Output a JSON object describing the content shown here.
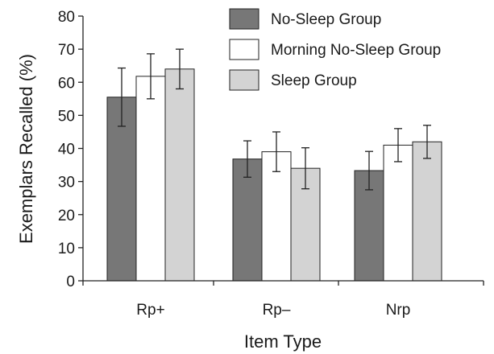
{
  "chart_data": {
    "type": "bar",
    "xlabel": "Item Type",
    "ylabel": "Exemplars Recalled (%)",
    "ylim": [
      0,
      80
    ],
    "yticks": [
      0,
      10,
      20,
      30,
      40,
      50,
      60,
      70,
      80
    ],
    "categories": [
      "Rp+",
      "Rp–",
      "Nrp"
    ],
    "series": [
      {
        "name": "No-Sleep Group",
        "color": "#777777",
        "values": [
          55.5,
          36.8,
          33.3
        ],
        "error": [
          8.8,
          5.5,
          5.8
        ]
      },
      {
        "name": "Morning No-Sleep Group",
        "color": "#ffffff",
        "values": [
          61.8,
          39.0,
          41.0
        ],
        "error": [
          6.8,
          6.0,
          5.0
        ]
      },
      {
        "name": "Sleep Group",
        "color": "#d3d3d3",
        "values": [
          64.0,
          34.0,
          42.0
        ],
        "error": [
          6.0,
          6.2,
          5.0
        ]
      }
    ],
    "legend_position": "top-right",
    "grid": false
  }
}
